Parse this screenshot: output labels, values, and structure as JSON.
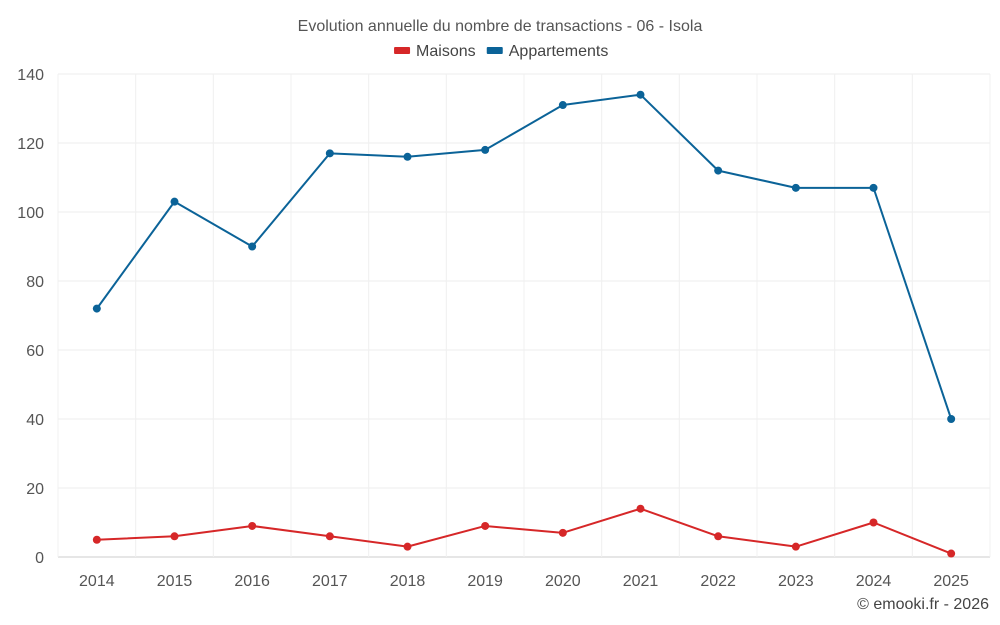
{
  "chart_data": {
    "type": "line",
    "title": "Evolution annuelle du nombre de transactions - 06 - Isola",
    "categories": [
      "2014",
      "2015",
      "2016",
      "2017",
      "2018",
      "2019",
      "2020",
      "2021",
      "2022",
      "2023",
      "2024",
      "2025"
    ],
    "series": [
      {
        "name": "Maisons",
        "color": "#d62728",
        "values": [
          5,
          6,
          9,
          6,
          3,
          9,
          7,
          14,
          6,
          3,
          10,
          1
        ]
      },
      {
        "name": "Appartements",
        "color": "#0b6398",
        "values": [
          72,
          103,
          90,
          117,
          116,
          118,
          131,
          134,
          112,
          107,
          107,
          40
        ]
      }
    ],
    "ylim": [
      0,
      140
    ],
    "yticks": [
      0,
      20,
      40,
      60,
      80,
      100,
      120,
      140
    ],
    "xlabel": "",
    "ylabel": "",
    "grid": true,
    "legend_position": "top-center"
  },
  "credit": "© emooki.fr - 2026"
}
